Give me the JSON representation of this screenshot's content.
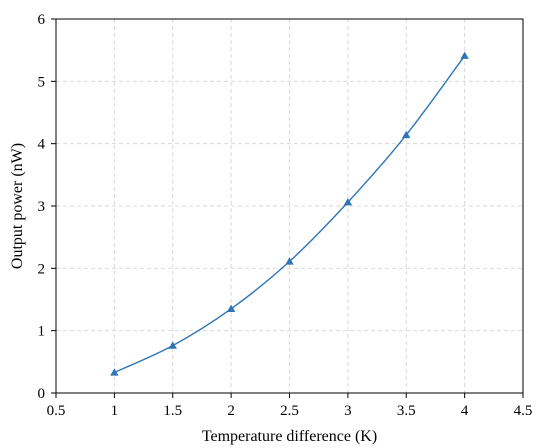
{
  "chart_data": {
    "type": "line",
    "title": "",
    "xlabel": "Temperature difference (K)",
    "ylabel": "Output power (nW)",
    "xlim": [
      0.5,
      4.5
    ],
    "ylim": [
      0,
      6
    ],
    "xticks": [
      "0.5",
      "1",
      "1.5",
      "2",
      "2.5",
      "3",
      "3.5",
      "4",
      "4.5"
    ],
    "yticks": [
      "0",
      "1",
      "2",
      "3",
      "4",
      "5",
      "6"
    ],
    "grid": true,
    "legend": "none",
    "series": [
      {
        "marker": "triangle",
        "color": "#2e75b6",
        "x": [
          1,
          1.5,
          2,
          2.5,
          3,
          3.5,
          4
        ],
        "y": [
          0.33,
          0.76,
          1.35,
          2.11,
          3.06,
          4.14,
          5.41
        ]
      }
    ]
  }
}
